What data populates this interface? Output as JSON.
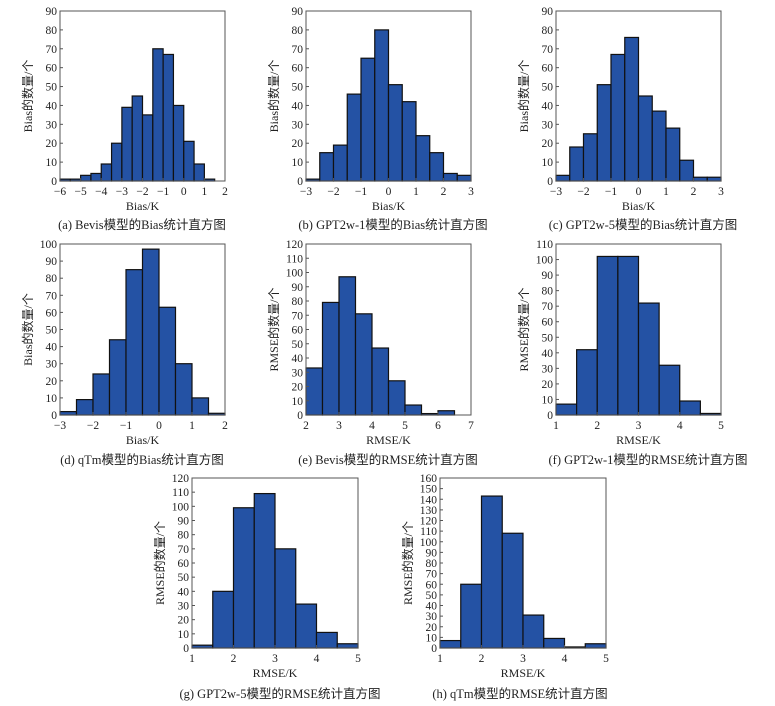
{
  "chart_data": [
    {
      "id": "a",
      "type": "bar",
      "title": "(a) Bevis模型的Bias统计直方图",
      "xlabel": "Bias/K",
      "ylabel": "Bias的数量/个",
      "xlim": [
        -6,
        2
      ],
      "ylim": [
        0,
        90
      ],
      "xticks": [
        "-6",
        "-5",
        "-4",
        "-3",
        "-2",
        "-1",
        "0",
        "1",
        "2"
      ],
      "xtick_values": [
        -6,
        -5,
        -4,
        -3,
        -2,
        -1,
        0,
        1,
        2
      ],
      "yticks": [
        0,
        10,
        20,
        30,
        40,
        50,
        60,
        70,
        80,
        90
      ],
      "bin_start": -6,
      "bin_width": 0.5,
      "values": [
        1,
        1,
        3,
        4,
        9,
        20,
        39,
        45,
        35,
        70,
        67,
        40,
        21,
        9,
        1
      ],
      "grid": false,
      "color": "#2452a4"
    },
    {
      "id": "b",
      "type": "bar",
      "title": "(b) GPT2w-1模型的Bias统计直方图",
      "xlabel": "Bias/K",
      "ylabel": "Bias的数量/个",
      "xlim": [
        -3,
        3
      ],
      "ylim": [
        0,
        90
      ],
      "xticks": [
        "-3",
        "-2",
        "-1",
        "0",
        "1",
        "2",
        "3"
      ],
      "xtick_values": [
        -3,
        -2,
        -1,
        0,
        1,
        2,
        3
      ],
      "yticks": [
        0,
        10,
        20,
        30,
        40,
        50,
        60,
        70,
        80,
        90
      ],
      "bin_start": -3,
      "bin_width": 0.5,
      "values": [
        1,
        15,
        19,
        46,
        65,
        80,
        51,
        42,
        24,
        15,
        4,
        3
      ],
      "grid": false,
      "color": "#2452a4"
    },
    {
      "id": "c",
      "type": "bar",
      "title": "(c) GPT2w-5模型的Bias统计直方图",
      "xlabel": "Bias/K",
      "ylabel": "Bias的数量/个",
      "xlim": [
        -3,
        3
      ],
      "ylim": [
        0,
        90
      ],
      "xticks": [
        "-3",
        "-2",
        "-1",
        "0",
        "1",
        "2",
        "3"
      ],
      "xtick_values": [
        -3,
        -2,
        -1,
        0,
        1,
        2,
        3
      ],
      "yticks": [
        0,
        10,
        20,
        30,
        40,
        50,
        60,
        70,
        80,
        90
      ],
      "bin_start": -3,
      "bin_width": 0.5,
      "values": [
        3,
        18,
        25,
        51,
        67,
        76,
        45,
        37,
        28,
        11,
        2,
        2
      ],
      "grid": false,
      "color": "#2452a4"
    },
    {
      "id": "d",
      "type": "bar",
      "title": "(d) qTm模型的Bias统计直方图",
      "xlabel": "Bias/K",
      "ylabel": "Bias的数量/个",
      "xlim": [
        -3,
        2
      ],
      "ylim": [
        0,
        100
      ],
      "xticks": [
        "-3",
        "-2",
        "-1",
        "0",
        "1",
        "2"
      ],
      "xtick_values": [
        -3,
        -2,
        -1,
        0,
        1,
        2
      ],
      "yticks": [
        0,
        10,
        20,
        30,
        40,
        50,
        60,
        70,
        80,
        90,
        100
      ],
      "bin_start": -3,
      "bin_width": 0.5,
      "values": [
        2,
        9,
        24,
        44,
        85,
        97,
        63,
        30,
        10,
        1
      ],
      "grid": false,
      "color": "#2452a4"
    },
    {
      "id": "e",
      "type": "bar",
      "title": "(e) Bevis模型的RMSE统计直方图",
      "xlabel": "RMSE/K",
      "ylabel": "RMSE的数量/个",
      "xlim": [
        2,
        7
      ],
      "ylim": [
        0,
        120
      ],
      "xticks": [
        "2",
        "3",
        "4",
        "5",
        "6",
        "7"
      ],
      "xtick_values": [
        2,
        3,
        4,
        5,
        6,
        7
      ],
      "yticks": [
        0,
        10,
        20,
        30,
        40,
        50,
        60,
        70,
        80,
        90,
        100,
        110,
        120
      ],
      "bin_start": 2,
      "bin_width": 0.5,
      "values": [
        33,
        79,
        97,
        71,
        47,
        24,
        7,
        1,
        3
      ],
      "grid": false,
      "color": "#2452a4"
    },
    {
      "id": "f",
      "type": "bar",
      "title": "(f) GPT2w-1模型的RMSE统计直方图",
      "xlabel": "RMSE/K",
      "ylabel": "RMSE的数量/个",
      "xlim": [
        1,
        5
      ],
      "ylim": [
        0,
        110
      ],
      "xticks": [
        "1",
        "2",
        "3",
        "4",
        "5"
      ],
      "xtick_values": [
        1,
        2,
        3,
        4,
        5
      ],
      "yticks": [
        0,
        10,
        20,
        30,
        40,
        50,
        60,
        70,
        80,
        90,
        100,
        110
      ],
      "bin_start": 1,
      "bin_width": 0.5,
      "values": [
        7,
        42,
        102,
        102,
        72,
        32,
        9,
        1
      ],
      "grid": false,
      "color": "#2452a4"
    },
    {
      "id": "g",
      "type": "bar",
      "title": "(g) GPT2w-5模型的RMSE统计直方图",
      "xlabel": "RMSE/K",
      "ylabel": "RMSE的数量/个",
      "xlim": [
        1,
        5
      ],
      "ylim": [
        0,
        120
      ],
      "xticks": [
        "1",
        "2",
        "3",
        "4",
        "5"
      ],
      "xtick_values": [
        1,
        2,
        3,
        4,
        5
      ],
      "yticks": [
        0,
        10,
        20,
        30,
        40,
        50,
        60,
        70,
        80,
        90,
        100,
        110,
        120
      ],
      "bin_start": 1,
      "bin_width": 0.5,
      "values": [
        2,
        40,
        99,
        109,
        70,
        31,
        11,
        3
      ],
      "grid": false,
      "color": "#2452a4"
    },
    {
      "id": "h",
      "type": "bar",
      "title": "(h) qTm模型的RMSE统计直方图",
      "xlabel": "RMSE/K",
      "ylabel": "RMSE的数量/个",
      "xlim": [
        1,
        5
      ],
      "ylim": [
        0,
        160
      ],
      "xticks": [
        "1",
        "2",
        "3",
        "4",
        "5"
      ],
      "xtick_values": [
        1,
        2,
        3,
        4,
        5
      ],
      "yticks": [
        0,
        10,
        20,
        30,
        40,
        50,
        60,
        70,
        80,
        90,
        100,
        110,
        120,
        130,
        140,
        150,
        160
      ],
      "bin_start": 1,
      "bin_width": 0.5,
      "values": [
        7,
        60,
        143,
        108,
        31,
        9,
        1,
        4
      ],
      "grid": false,
      "color": "#2452a4"
    }
  ]
}
